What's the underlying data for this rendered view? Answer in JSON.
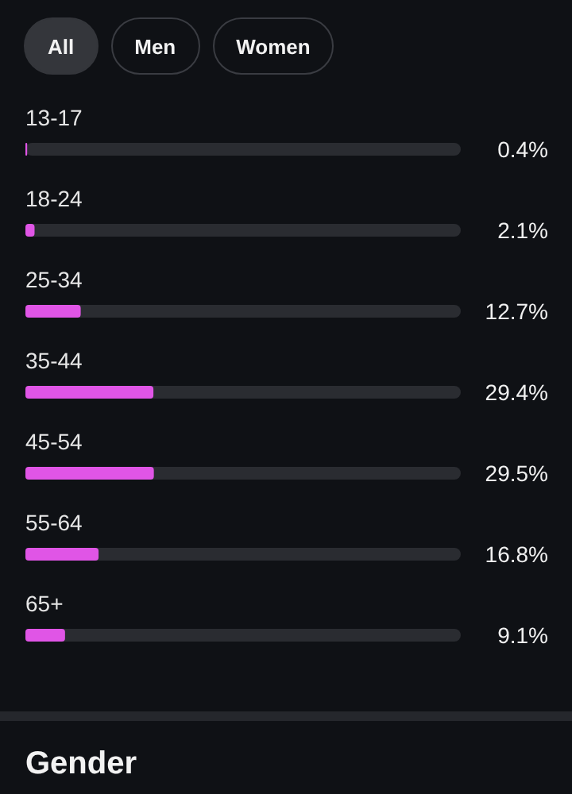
{
  "chart_data": {
    "type": "bar",
    "orientation": "horizontal",
    "categories": [
      "13-17",
      "18-24",
      "25-34",
      "35-44",
      "45-54",
      "55-64",
      "65+"
    ],
    "values": [
      0.4,
      2.1,
      12.7,
      29.4,
      29.5,
      16.8,
      9.1
    ],
    "value_labels": [
      "0.4%",
      "2.1%",
      "12.7%",
      "29.4%",
      "29.5%",
      "16.8%",
      "9.1%"
    ],
    "color": "#e055e6",
    "xlim": [
      0,
      100
    ],
    "tick_labels": "y",
    "annotations": [
      "All",
      "Men",
      "Women",
      "Gender"
    ]
  }
}
